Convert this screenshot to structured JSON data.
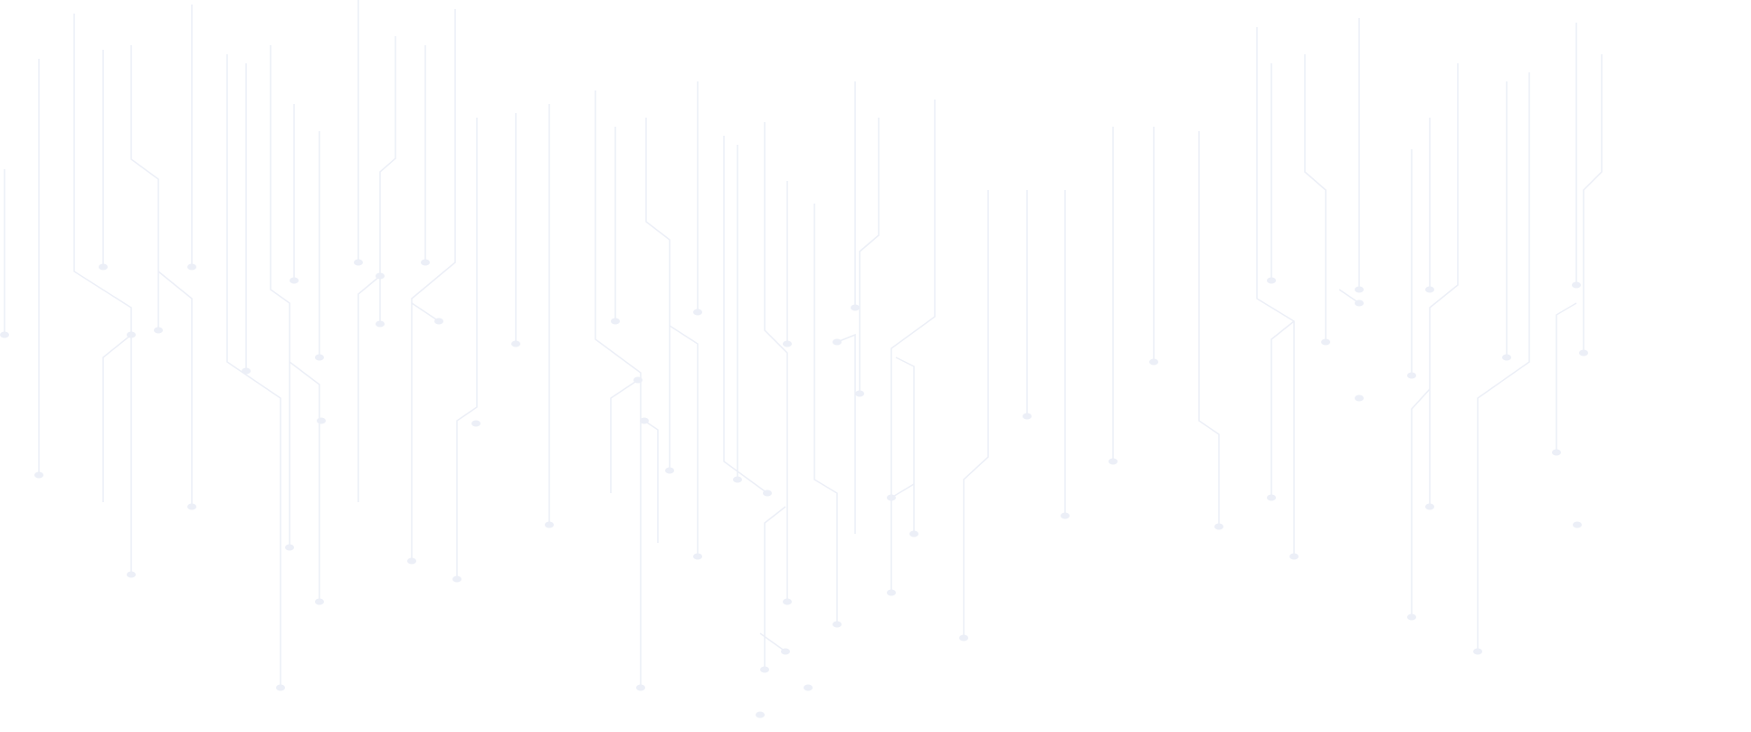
{
  "background": {
    "pattern": "circuit-lines",
    "line_color": "#eceff7",
    "page_color": "#ffffff"
  }
}
